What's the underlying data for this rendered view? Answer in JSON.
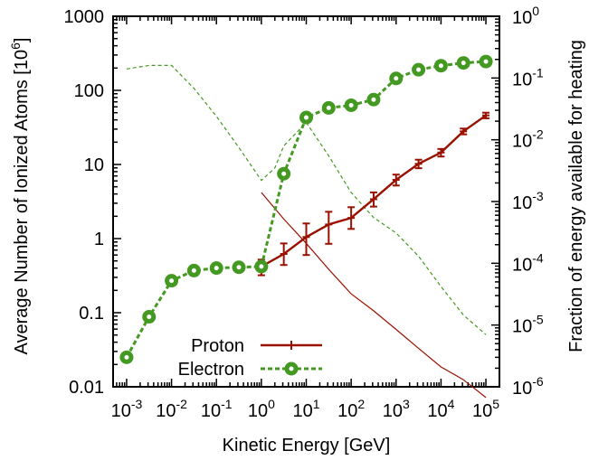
{
  "chart_data": {
    "type": "line",
    "xlabel": "Kinetic Energy [GeV]",
    "ylabel": "Average Number of Ionized Atoms [10",
    "ylabel_exponent": "6",
    "ylabel_suffix": "]",
    "y2label": "Fraction of energy available for heating",
    "xscale": "log",
    "yscale": "log",
    "y2scale": "log",
    "xlim": [
      0.0005,
      200000
    ],
    "ylim": [
      0.01,
      1000
    ],
    "y2lim": [
      1e-06,
      1
    ],
    "x_ticks": [
      {
        "base": "10",
        "exp": "-3",
        "value": 0.001
      },
      {
        "base": "10",
        "exp": "-2",
        "value": 0.01
      },
      {
        "base": "10",
        "exp": "-1",
        "value": 0.1
      },
      {
        "base": "10",
        "exp": "0",
        "value": 1
      },
      {
        "base": "10",
        "exp": "1",
        "value": 10
      },
      {
        "base": "10",
        "exp": "2",
        "value": 100
      },
      {
        "base": "10",
        "exp": "3",
        "value": 1000
      },
      {
        "base": "10",
        "exp": "4",
        "value": 10000
      },
      {
        "base": "10",
        "exp": "5",
        "value": 100000
      }
    ],
    "y_ticks": [
      {
        "label": "0.01",
        "value": 0.01
      },
      {
        "label": "0.1",
        "value": 0.1
      },
      {
        "label": "1",
        "value": 1
      },
      {
        "label": "10",
        "value": 10
      },
      {
        "label": "100",
        "value": 100
      },
      {
        "label": "1000",
        "value": 1000
      }
    ],
    "y2_ticks": [
      {
        "base": "10",
        "exp": "-6",
        "value": 1e-06
      },
      {
        "base": "10",
        "exp": "-5",
        "value": 1e-05
      },
      {
        "base": "10",
        "exp": "-4",
        "value": 0.0001
      },
      {
        "base": "10",
        "exp": "-3",
        "value": 0.001
      },
      {
        "base": "10",
        "exp": "-2",
        "value": 0.01
      },
      {
        "base": "10",
        "exp": "-1",
        "value": 0.1
      },
      {
        "base": "10",
        "exp": "0",
        "value": 1
      }
    ],
    "legend": {
      "position": "bottom-left"
    },
    "series": [
      {
        "name": "Proton",
        "color": "#991100",
        "axis": "left",
        "style": "solid",
        "marker": "errorbar",
        "x": [
          1,
          3.16,
          10,
          31.6,
          100,
          316,
          1000,
          3160,
          10000,
          31600,
          100000
        ],
        "y": [
          0.42,
          0.62,
          1.05,
          1.55,
          1.9,
          3.4,
          6.2,
          10.2,
          14.5,
          28,
          46
        ],
        "yerr_low": [
          0.32,
          0.44,
          0.6,
          0.85,
          1.35,
          2.7,
          5.2,
          8.9,
          12.8,
          25.5,
          42
        ],
        "yerr_high": [
          0.52,
          0.86,
          1.6,
          2.3,
          2.65,
          4.2,
          7.3,
          11.6,
          16.2,
          30.5,
          50
        ]
      },
      {
        "name": "Electron",
        "color": "#449922",
        "axis": "left",
        "style": "dashed",
        "marker": "circle",
        "x": [
          0.001,
          0.00316,
          0.01,
          0.0316,
          0.1,
          0.316,
          1,
          3.16,
          10,
          31.6,
          100,
          316,
          1000,
          3160,
          10000,
          31600,
          100000
        ],
        "y": [
          0.025,
          0.088,
          0.27,
          0.37,
          0.4,
          0.41,
          0.42,
          7.5,
          43,
          58,
          63,
          75,
          145,
          190,
          215,
          235,
          245
        ]
      },
      {
        "name": "",
        "color": "#991100",
        "axis": "right",
        "style": "thin-solid",
        "x": [
          1,
          3.16,
          10,
          31.6,
          100,
          316,
          1000,
          3160,
          10000,
          31600,
          100000
        ],
        "y": [
          0.0014,
          0.00052,
          0.00021,
          8e-05,
          3.2e-05,
          1.7e-05,
          8.5e-06,
          4.2e-06,
          2.1e-06,
          1.3e-06,
          6.7e-07
        ]
      },
      {
        "name": "",
        "color": "#449922",
        "axis": "right",
        "style": "thin-dashed",
        "x": [
          0.001,
          0.00316,
          0.01,
          0.0316,
          0.1,
          0.316,
          1,
          2,
          3.16,
          10,
          31.6,
          100,
          316,
          1000,
          3160,
          10000,
          31600,
          100000
        ],
        "y": [
          0.14,
          0.16,
          0.16,
          0.068,
          0.024,
          0.0075,
          0.0022,
          0.0035,
          0.008,
          0.019,
          0.0055,
          0.0014,
          0.00055,
          0.00031,
          0.00013,
          4.2e-05,
          1.45e-05,
          7e-06
        ]
      }
    ]
  }
}
